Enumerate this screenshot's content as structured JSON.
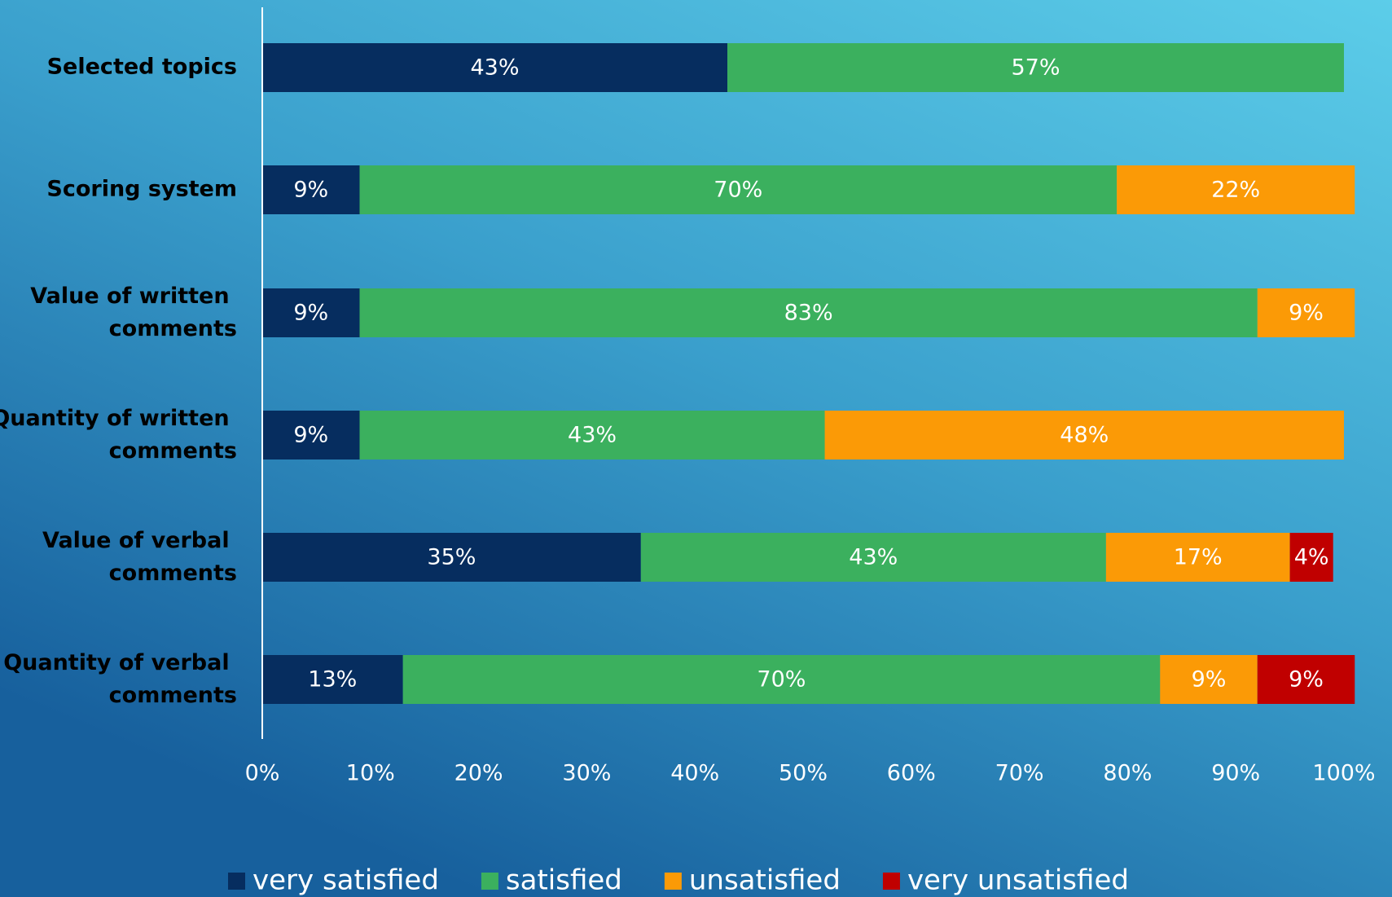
{
  "chart_data": {
    "type": "stacked_bar_horizontal",
    "categories": [
      "Selected topics",
      "Scoring system",
      "Value of written comments",
      "Quantity of written comments",
      "Value of verbal comments",
      "Quantity of verbal comments"
    ],
    "series": [
      {
        "name": "very satisfied",
        "color": "#062d5f",
        "values": [
          43,
          9,
          9,
          9,
          35,
          13
        ],
        "value_labels": [
          "43%",
          "9%",
          "9%",
          "9%",
          "35%",
          "13%"
        ]
      },
      {
        "name": "satisfied",
        "color": "#3bb05e",
        "values": [
          57,
          70,
          83,
          43,
          43,
          70
        ],
        "value_labels": [
          "57%",
          "70%",
          "83%",
          "43%",
          "43%",
          "70%"
        ]
      },
      {
        "name": "unsatisfied",
        "color": "#fb9a06",
        "values": [
          null,
          22,
          9,
          48,
          17,
          9
        ],
        "value_labels": [
          null,
          "22%",
          "9%",
          "48%",
          "17%",
          "9%"
        ]
      },
      {
        "name": "very unsatisfied",
        "color": "#c00000",
        "values": [
          null,
          null,
          null,
          null,
          4,
          9
        ],
        "value_labels": [
          null,
          null,
          null,
          null,
          "4%",
          "9%"
        ]
      }
    ],
    "xlim": [
      0,
      100
    ],
    "xticks": [
      {
        "value": 0,
        "label": "0%"
      },
      {
        "value": 10,
        "label": "10%"
      },
      {
        "value": 20,
        "label": "20%"
      },
      {
        "value": 30,
        "label": "30%"
      },
      {
        "value": 40,
        "label": "40%"
      },
      {
        "value": 50,
        "label": "50%"
      },
      {
        "value": 60,
        "label": "60%"
      },
      {
        "value": 70,
        "label": "70%"
      },
      {
        "value": 80,
        "label": "80%"
      },
      {
        "value": 90,
        "label": "90%"
      },
      {
        "value": 100,
        "label": "100%"
      }
    ],
    "legend": "bottom"
  }
}
